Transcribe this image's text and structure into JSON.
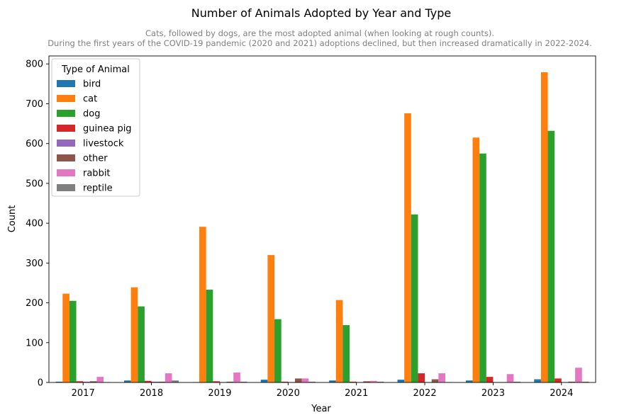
{
  "chart_data": {
    "type": "bar",
    "title": "Number of Animals Adopted by Year and Type",
    "subtitle": [
      "Cats, followed by dogs, are the most adopted animal (when looking at rough counts).",
      "During the first years of the COVID-19 pandemic (2020 and 2021) adoptions declined, but then increased dramatically in 2022-2024."
    ],
    "xlabel": "Year",
    "ylabel": "Count",
    "ylim": [
      0,
      820
    ],
    "yticks": [
      0,
      100,
      200,
      300,
      400,
      500,
      600,
      700,
      800
    ],
    "grid": false,
    "legend": {
      "title": "Type of Animal",
      "placement": "top-left"
    },
    "categories": [
      "2017",
      "2018",
      "2019",
      "2020",
      "2021",
      "2022",
      "2023",
      "2024"
    ],
    "series": [
      {
        "name": "bird",
        "color": "#1f77b4",
        "values": [
          2,
          5,
          1,
          7,
          5,
          7,
          5,
          8
        ]
      },
      {
        "name": "cat",
        "color": "#ff7f0e",
        "values": [
          223,
          239,
          391,
          320,
          207,
          676,
          615,
          779
        ]
      },
      {
        "name": "dog",
        "color": "#2ca02c",
        "values": [
          205,
          191,
          233,
          159,
          144,
          422,
          575,
          632
        ]
      },
      {
        "name": "guinea pig",
        "color": "#d62728",
        "values": [
          3,
          4,
          3,
          2,
          2,
          23,
          14,
          10
        ]
      },
      {
        "name": "livestock",
        "color": "#9467bd",
        "values": [
          2,
          2,
          1,
          1,
          1,
          1,
          1,
          1
        ]
      },
      {
        "name": "other",
        "color": "#8c564b",
        "values": [
          3,
          2,
          2,
          10,
          3,
          8,
          1,
          2
        ]
      },
      {
        "name": "rabbit",
        "color": "#e377c2",
        "values": [
          14,
          23,
          25,
          10,
          4,
          23,
          21,
          37
        ]
      },
      {
        "name": "reptile",
        "color": "#7f7f7f",
        "values": [
          1,
          5,
          2,
          2,
          2,
          1,
          2,
          2
        ]
      }
    ]
  }
}
